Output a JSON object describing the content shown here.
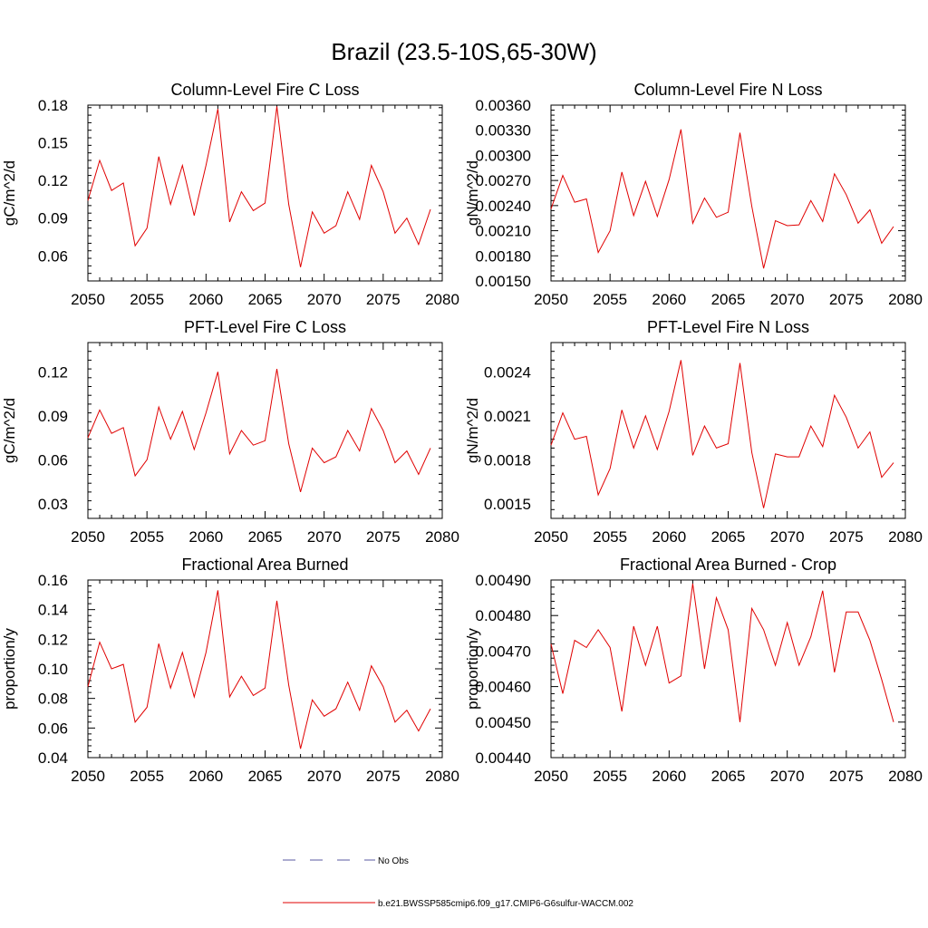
{
  "figure": {
    "title": "Brazil (23.5-10S,65-30W)"
  },
  "legend": {
    "entries": [
      {
        "label": "No Obs",
        "color": "#5a5aa0",
        "style": "dashed"
      },
      {
        "label": "b.e21.BWSSP585cmip6.f09_g17.CMIP6-G6sulfur-WACCM.002",
        "color": "#e00000",
        "style": "solid"
      }
    ]
  },
  "chart_data": [
    {
      "type": "line",
      "title": "Column-Level Fire C Loss",
      "ylabel": "gC/m^2/d",
      "xlim": [
        2050,
        2080
      ],
      "ylim": [
        0.04,
        0.18
      ],
      "xticks": [
        "2050",
        "2055",
        "2060",
        "2065",
        "2070",
        "2075",
        "2080"
      ],
      "yticks": [
        "0.06",
        "0.09",
        "0.12",
        "0.15",
        "0.18"
      ],
      "grid": false,
      "series": [
        {
          "color": "#e00000",
          "x": [
            2050,
            2051,
            2052,
            2053,
            2054,
            2055,
            2056,
            2057,
            2058,
            2059,
            2060,
            2061,
            2062,
            2063,
            2064,
            2065,
            2066,
            2067,
            2068,
            2069,
            2070,
            2071,
            2072,
            2073,
            2074,
            2075,
            2076,
            2077,
            2078,
            2079
          ],
          "values": [
            0.104,
            0.136,
            0.112,
            0.118,
            0.068,
            0.082,
            0.139,
            0.101,
            0.132,
            0.092,
            0.132,
            0.177,
            0.087,
            0.111,
            0.096,
            0.102,
            0.179,
            0.101,
            0.051,
            0.095,
            0.078,
            0.084,
            0.111,
            0.089,
            0.132,
            0.111,
            0.078,
            0.09,
            0.069,
            0.097
          ]
        }
      ]
    },
    {
      "type": "line",
      "title": "Column-Level Fire N Loss",
      "ylabel": "gN/m^2/d",
      "xlim": [
        2050,
        2080
      ],
      "ylim": [
        0.0015,
        0.0036
      ],
      "xticks": [
        "2050",
        "2055",
        "2060",
        "2065",
        "2070",
        "2075",
        "2080"
      ],
      "yticks": [
        "0.00150",
        "0.00180",
        "0.00210",
        "0.00240",
        "0.00270",
        "0.00300",
        "0.00330",
        "0.00360"
      ],
      "grid": false,
      "series": [
        {
          "color": "#e00000",
          "x": [
            2050,
            2051,
            2052,
            2053,
            2054,
            2055,
            2056,
            2057,
            2058,
            2059,
            2060,
            2061,
            2062,
            2063,
            2064,
            2065,
            2066,
            2067,
            2068,
            2069,
            2070,
            2071,
            2072,
            2073,
            2074,
            2075,
            2076,
            2077,
            2078,
            2079
          ],
          "values": [
            0.00236,
            0.00276,
            0.00244,
            0.00248,
            0.00184,
            0.0021,
            0.0028,
            0.00228,
            0.00269,
            0.00227,
            0.00271,
            0.00331,
            0.00219,
            0.00249,
            0.00226,
            0.00232,
            0.00327,
            0.00239,
            0.00165,
            0.00222,
            0.00216,
            0.00217,
            0.00246,
            0.00221,
            0.00278,
            0.00253,
            0.00219,
            0.00235,
            0.00195,
            0.00215
          ]
        }
      ]
    },
    {
      "type": "line",
      "title": "PFT-Level Fire C Loss",
      "ylabel": "gC/m^2/d",
      "xlim": [
        2050,
        2080
      ],
      "ylim": [
        0.02,
        0.14
      ],
      "xticks": [
        "2050",
        "2055",
        "2060",
        "2065",
        "2070",
        "2075",
        "2080"
      ],
      "yticks": [
        "0.03",
        "0.06",
        "0.09",
        "0.12"
      ],
      "grid": false,
      "series": [
        {
          "color": "#e00000",
          "x": [
            2050,
            2051,
            2052,
            2053,
            2054,
            2055,
            2056,
            2057,
            2058,
            2059,
            2060,
            2061,
            2062,
            2063,
            2064,
            2065,
            2066,
            2067,
            2068,
            2069,
            2070,
            2071,
            2072,
            2073,
            2074,
            2075,
            2076,
            2077,
            2078,
            2079
          ],
          "values": [
            0.075,
            0.094,
            0.078,
            0.082,
            0.049,
            0.06,
            0.096,
            0.074,
            0.093,
            0.067,
            0.092,
            0.12,
            0.064,
            0.08,
            0.07,
            0.073,
            0.122,
            0.071,
            0.038,
            0.068,
            0.058,
            0.062,
            0.08,
            0.066,
            0.095,
            0.08,
            0.058,
            0.066,
            0.05,
            0.068
          ]
        }
      ]
    },
    {
      "type": "line",
      "title": "PFT-Level Fire N Loss",
      "ylabel": "gN/m^2/d",
      "xlim": [
        2050,
        2080
      ],
      "ylim": [
        0.0014,
        0.0026
      ],
      "xticks": [
        "2050",
        "2055",
        "2060",
        "2065",
        "2070",
        "2075",
        "2080"
      ],
      "yticks": [
        "0.0015",
        "0.0018",
        "0.0021",
        "0.0024"
      ],
      "grid": false,
      "series": [
        {
          "color": "#e00000",
          "x": [
            2050,
            2051,
            2052,
            2053,
            2054,
            2055,
            2056,
            2057,
            2058,
            2059,
            2060,
            2061,
            2062,
            2063,
            2064,
            2065,
            2066,
            2067,
            2068,
            2069,
            2070,
            2071,
            2072,
            2073,
            2074,
            2075,
            2076,
            2077,
            2078,
            2079
          ],
          "values": [
            0.0019,
            0.00212,
            0.00194,
            0.00196,
            0.00156,
            0.00174,
            0.00214,
            0.00188,
            0.0021,
            0.00187,
            0.00213,
            0.00248,
            0.00183,
            0.00203,
            0.00188,
            0.00191,
            0.00246,
            0.00185,
            0.00147,
            0.00184,
            0.00182,
            0.00182,
            0.00203,
            0.00189,
            0.00224,
            0.00209,
            0.00188,
            0.00199,
            0.00168,
            0.00178
          ]
        }
      ]
    },
    {
      "type": "line",
      "title": "Fractional Area Burned",
      "ylabel": "proportion/y",
      "xlim": [
        2050,
        2080
      ],
      "ylim": [
        0.04,
        0.16
      ],
      "xticks": [
        "2050",
        "2055",
        "2060",
        "2065",
        "2070",
        "2075",
        "2080"
      ],
      "yticks": [
        "0.04",
        "0.06",
        "0.08",
        "0.10",
        "0.12",
        "0.14",
        "0.16"
      ],
      "grid": false,
      "series": [
        {
          "color": "#e00000",
          "x": [
            2050,
            2051,
            2052,
            2053,
            2054,
            2055,
            2056,
            2057,
            2058,
            2059,
            2060,
            2061,
            2062,
            2063,
            2064,
            2065,
            2066,
            2067,
            2068,
            2069,
            2070,
            2071,
            2072,
            2073,
            2074,
            2075,
            2076,
            2077,
            2078,
            2079
          ],
          "values": [
            0.088,
            0.118,
            0.1,
            0.103,
            0.064,
            0.074,
            0.117,
            0.087,
            0.111,
            0.081,
            0.111,
            0.153,
            0.081,
            0.095,
            0.082,
            0.087,
            0.146,
            0.089,
            0.046,
            0.079,
            0.068,
            0.073,
            0.091,
            0.072,
            0.102,
            0.088,
            0.064,
            0.072,
            0.058,
            0.073
          ]
        }
      ]
    },
    {
      "type": "line",
      "title": "Fractional Area Burned - Crop",
      "ylabel": "proportion/y",
      "xlim": [
        2050,
        2080
      ],
      "ylim": [
        0.0044,
        0.0049
      ],
      "xticks": [
        "2050",
        "2055",
        "2060",
        "2065",
        "2070",
        "2075",
        "2080"
      ],
      "yticks": [
        "0.00440",
        "0.00450",
        "0.00460",
        "0.00470",
        "0.00480",
        "0.00490"
      ],
      "grid": false,
      "series": [
        {
          "color": "#e00000",
          "x": [
            2050,
            2051,
            2052,
            2053,
            2054,
            2055,
            2056,
            2057,
            2058,
            2059,
            2060,
            2061,
            2062,
            2063,
            2064,
            2065,
            2066,
            2067,
            2068,
            2069,
            2070,
            2071,
            2072,
            2073,
            2074,
            2075,
            2076,
            2077,
            2078,
            2079
          ],
          "values": [
            0.00472,
            0.00458,
            0.00473,
            0.00471,
            0.00476,
            0.00471,
            0.00453,
            0.00477,
            0.00466,
            0.00477,
            0.00461,
            0.00463,
            0.00489,
            0.00465,
            0.00485,
            0.00476,
            0.0045,
            0.00482,
            0.00476,
            0.00466,
            0.00478,
            0.00466,
            0.00474,
            0.00487,
            0.00464,
            0.00481,
            0.00481,
            0.00473,
            0.00462,
            0.0045
          ]
        }
      ]
    }
  ]
}
